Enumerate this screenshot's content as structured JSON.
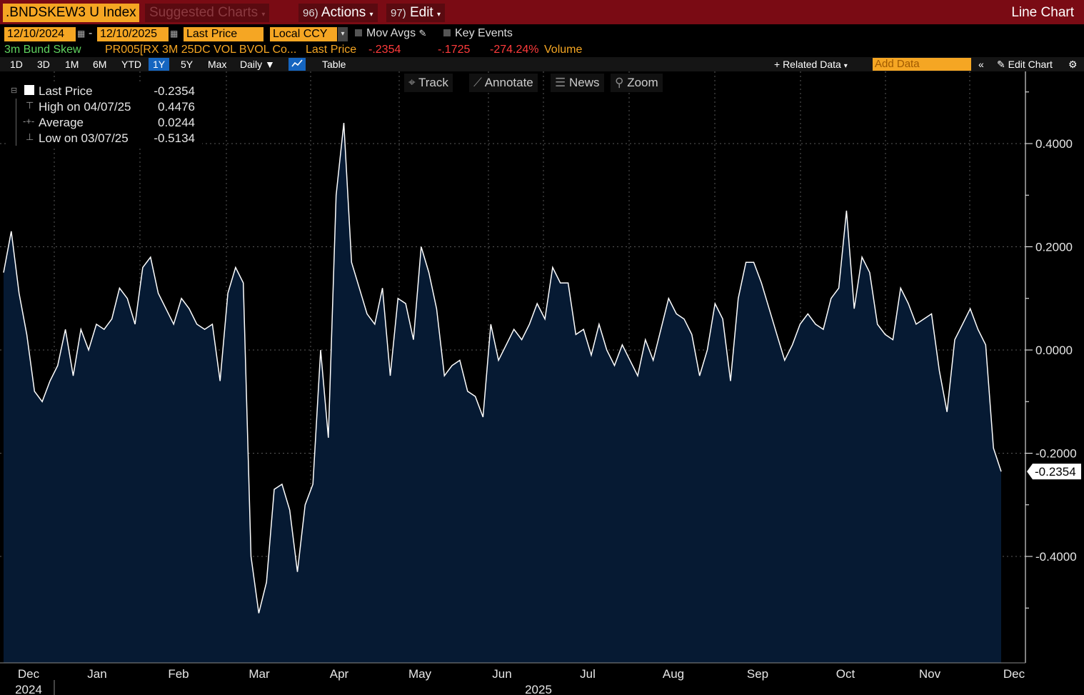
{
  "header": {
    "ticker": ".BNDSKEW3 U Index",
    "suggested": "Suggested Charts",
    "actions_num": "96)",
    "actions_label": "Actions",
    "edit_num": "97)",
    "edit_label": "Edit",
    "chart_title": "Line Chart"
  },
  "controls": {
    "start_date": "12/10/2024",
    "end_date": "12/10/2025",
    "field": "Last Price",
    "currency": "Local CCY",
    "mov_avgs": "Mov Avgs",
    "key_events": "Key Events"
  },
  "security_line": {
    "name": "3m Bund Skew",
    "description": "PR005[RX 3M 25DC VOL BVOL Co...",
    "field": "Last Price",
    "last": "-.2354",
    "change": "-.1725",
    "pct": "-274.24%",
    "volume": "Volume"
  },
  "ranges": [
    "1D",
    "3D",
    "1M",
    "6M",
    "YTD",
    "1Y",
    "5Y",
    "Max"
  ],
  "selected_range": "1Y",
  "frequency": "Daily",
  "table_label": "Table",
  "right_tools": {
    "related": "+ Related Data",
    "add_data": "Add Data",
    "edit_chart": "Edit Chart"
  },
  "chart_tools": [
    "Track",
    "Annotate",
    "News",
    "Zoom"
  ],
  "legend": {
    "last_label": "Last Price",
    "last_value": "-0.2354",
    "high_label": "High on 04/07/25",
    "high_value": "0.4476",
    "avg_label": "Average",
    "avg_value": "0.0244",
    "low_label": "Low on 03/07/25",
    "low_value": "-0.5134"
  },
  "colors": {
    "accent": "#f5a623",
    "header_red": "#7a0b14",
    "area_fill": "#061a33",
    "line": "#ffffff"
  },
  "chart_data": {
    "type": "area",
    "series": [
      {
        "name": "Last Price",
        "values": [
          0.15,
          0.23,
          0.11,
          0.03,
          -0.08,
          -0.1,
          -0.06,
          -0.03,
          0.04,
          -0.05,
          0.04,
          0.0,
          0.05,
          0.04,
          0.06,
          0.12,
          0.1,
          0.05,
          0.16,
          0.18,
          0.11,
          0.08,
          0.05,
          0.1,
          0.08,
          0.05,
          0.04,
          0.05,
          -0.06,
          0.11,
          0.16,
          0.13,
          -0.4,
          -0.51,
          -0.45,
          -0.27,
          -0.26,
          -0.31,
          -0.43,
          -0.3,
          -0.26,
          0.0,
          -0.17,
          0.3,
          0.44,
          0.17,
          0.12,
          0.07,
          0.05,
          0.12,
          -0.05,
          0.1,
          0.09,
          0.02,
          0.2,
          0.15,
          0.08,
          -0.05,
          -0.03,
          -0.02,
          -0.08,
          -0.09,
          -0.13,
          0.05,
          -0.02,
          0.01,
          0.04,
          0.02,
          0.05,
          0.09,
          0.06,
          0.16,
          0.13,
          0.13,
          0.03,
          0.04,
          -0.01,
          0.05,
          0.0,
          -0.03,
          0.01,
          -0.02,
          -0.05,
          0.02,
          -0.02,
          0.04,
          0.1,
          0.07,
          0.06,
          0.03,
          -0.05,
          0.0,
          0.09,
          0.06,
          -0.06,
          0.1,
          0.17,
          0.17,
          0.13,
          0.08,
          0.03,
          -0.02,
          0.01,
          0.05,
          0.07,
          0.05,
          0.04,
          0.1,
          0.12,
          0.27,
          0.08,
          0.18,
          0.15,
          0.05,
          0.03,
          0.02,
          0.12,
          0.09,
          0.05,
          0.06,
          0.07,
          -0.04,
          -0.12,
          0.02,
          0.05,
          0.08,
          0.04,
          0.01,
          -0.19,
          -0.2354
        ]
      }
    ],
    "x_ticks": [
      "Dec",
      "Jan",
      "Feb",
      "Mar",
      "Apr",
      "May",
      "Jun",
      "Jul",
      "Aug",
      "Sep",
      "Oct",
      "Nov",
      "Dec"
    ],
    "year_labels": [
      "2024",
      "2025"
    ],
    "y_ticks": [
      "0.4000",
      "0.2000",
      "0.0000",
      "-0.2000",
      "-0.4000"
    ],
    "y_tick_values": [
      0.4,
      0.2,
      0.0,
      -0.2,
      -0.4
    ],
    "last_label": "-0.2354",
    "ylim": [
      -0.6,
      0.5
    ],
    "grid": true
  }
}
